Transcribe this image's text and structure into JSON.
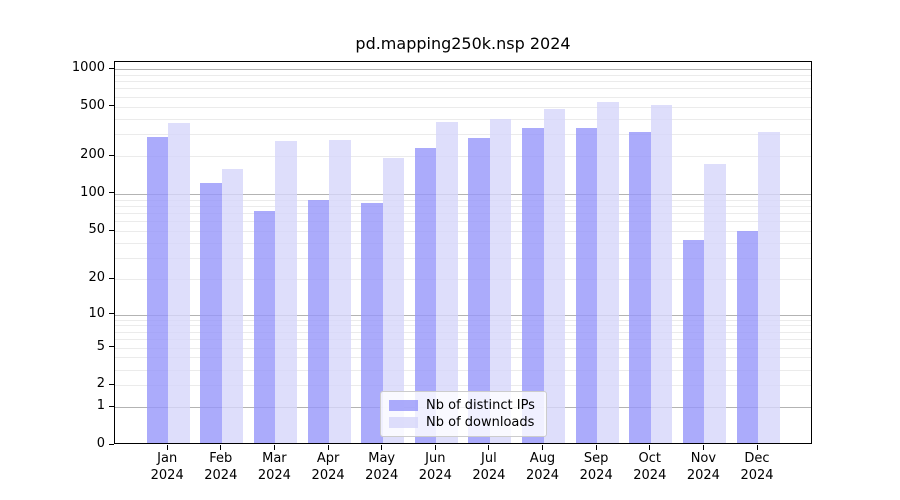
{
  "figure": {
    "title": "pd.mapping250k.nsp 2024"
  },
  "y_axis": {
    "ticks": [
      {
        "label": "1000",
        "value": 1000
      },
      {
        "label": "500",
        "value": 500
      },
      {
        "label": "200",
        "value": 200
      },
      {
        "label": "100",
        "value": 100
      },
      {
        "label": "50",
        "value": 50
      },
      {
        "label": "20",
        "value": 20
      },
      {
        "label": "10",
        "value": 10
      },
      {
        "label": "5",
        "value": 5
      },
      {
        "label": "2",
        "value": 2
      },
      {
        "label": "1",
        "value": 1
      },
      {
        "label": "0",
        "value": 0
      }
    ]
  },
  "x_axis": {
    "months": [
      "Jan",
      "Feb",
      "Mar",
      "Apr",
      "May",
      "Jun",
      "Jul",
      "Aug",
      "Sep",
      "Oct",
      "Nov",
      "Dec"
    ],
    "year": "2024"
  },
  "legend": {
    "items": [
      {
        "label": "Nb of distinct IPs",
        "key": "distinct-ips",
        "color": "rgba(150,150,250,0.8)"
      },
      {
        "label": "Nb of downloads",
        "key": "downloads",
        "color": "rgba(214,214,250,0.8)"
      }
    ]
  },
  "chart_data": {
    "type": "bar",
    "title": "pd.mapping250k.nsp 2024",
    "categories": [
      "Jan 2024",
      "Feb 2024",
      "Mar 2024",
      "Apr 2024",
      "May 2024",
      "Jun 2024",
      "Jul 2024",
      "Aug 2024",
      "Sep 2024",
      "Oct 2024",
      "Nov 2024",
      "Dec 2024"
    ],
    "series": [
      {
        "name": "Nb of distinct IPs",
        "key": "distinct-ips",
        "color": "rgba(150,150,250,0.8)",
        "values": [
          286,
          123,
          73,
          89,
          85,
          235,
          280,
          337,
          340,
          315,
          42,
          50
        ]
      },
      {
        "name": "Nb of downloads",
        "key": "downloads",
        "color": "rgba(214,214,250,0.8)",
        "values": [
          369,
          159,
          268,
          272,
          195,
          377,
          402,
          480,
          545,
          517,
          174,
          313
        ]
      }
    ],
    "y_scale": "log10(value+1)",
    "y_ticks": [
      0,
      1,
      2,
      5,
      10,
      20,
      50,
      100,
      200,
      500,
      1000
    ],
    "ylim": [
      0,
      1140
    ],
    "grid": true,
    "legend_position": "lower center"
  }
}
